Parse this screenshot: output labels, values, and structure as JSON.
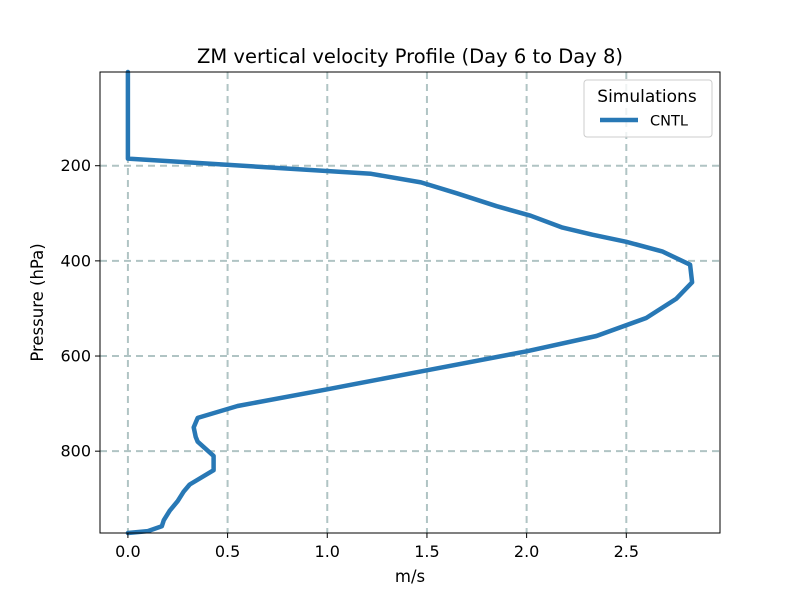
{
  "chart_data": {
    "type": "line",
    "title": "ZM vertical velocity Profile (Day 6 to Day 8)",
    "xlabel": "m/s",
    "ylabel": "Pressure (hPa)",
    "xlim": [
      -0.14,
      2.97
    ],
    "ylim": [
      972,
      3
    ],
    "y_inverted": true,
    "xticks": [
      0.0,
      0.5,
      1.0,
      1.5,
      2.0,
      2.5
    ],
    "xtick_labels": [
      "0.0",
      "0.5",
      "1.0",
      "1.5",
      "2.0",
      "2.5"
    ],
    "yticks": [
      200,
      400,
      600,
      800
    ],
    "ytick_labels": [
      "200",
      "400",
      "600",
      "800"
    ],
    "grid": true,
    "legend": {
      "title": "Simulations",
      "position": "top-right"
    },
    "series": [
      {
        "name": "CNTL",
        "color": "#2878b5",
        "x": [
          0.0,
          0.0,
          0.0,
          1.22,
          1.47,
          1.65,
          1.85,
          2.02,
          2.18,
          2.33,
          2.5,
          2.68,
          2.82,
          2.83,
          2.75,
          2.6,
          2.35,
          2.0,
          1.5,
          1.0,
          0.55,
          0.35,
          0.33,
          0.34,
          0.35,
          0.43,
          0.43,
          0.31,
          0.28,
          0.25,
          0.21,
          0.18,
          0.17,
          0.1,
          0.0
        ],
        "y": [
          3,
          120,
          185,
          217,
          235,
          258,
          285,
          305,
          330,
          345,
          360,
          380,
          408,
          445,
          480,
          520,
          558,
          590,
          630,
          670,
          705,
          730,
          750,
          770,
          780,
          810,
          840,
          870,
          885,
          905,
          925,
          945,
          958,
          968,
          972
        ]
      }
    ]
  }
}
